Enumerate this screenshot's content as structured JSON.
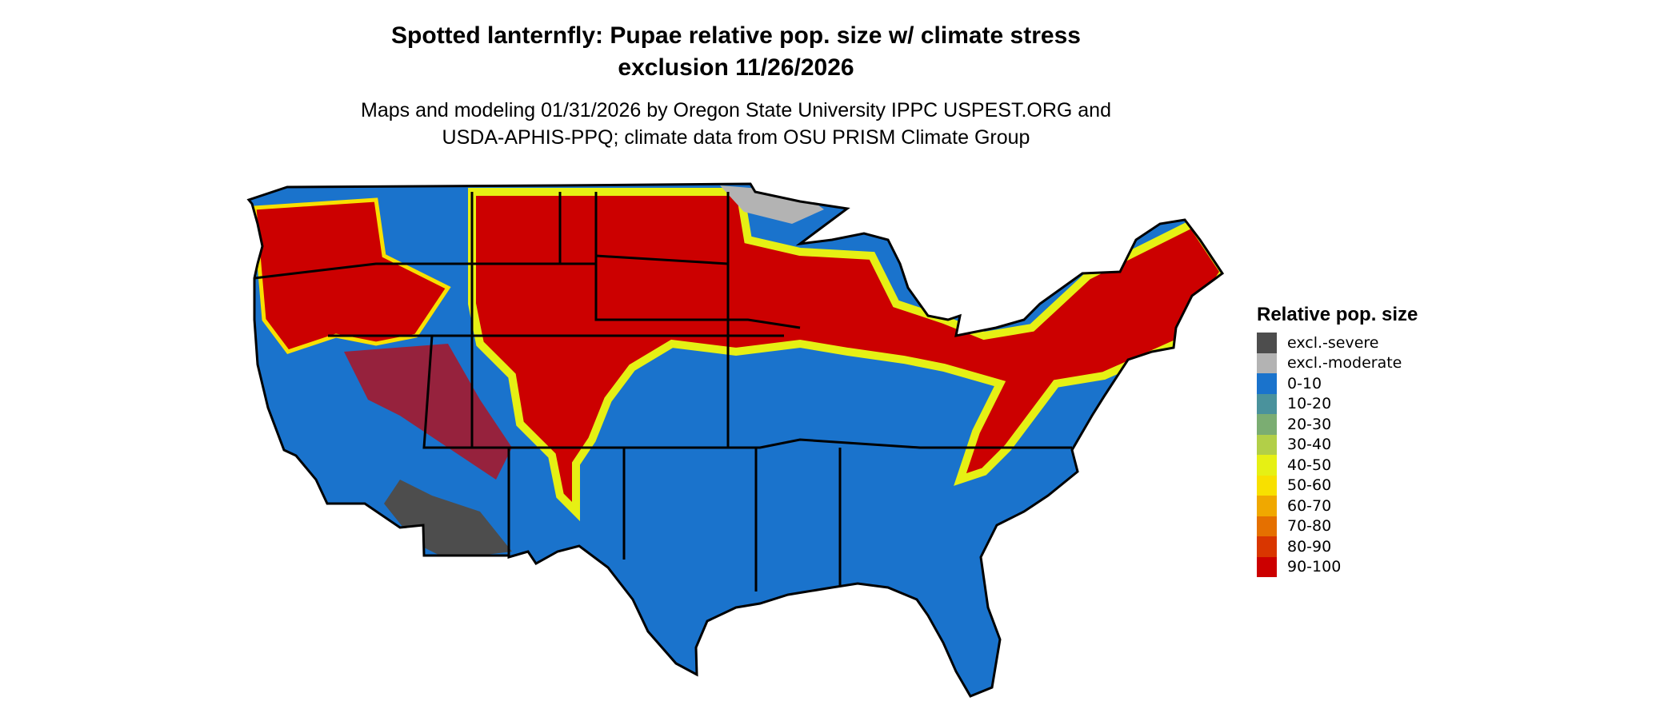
{
  "title_line1": "Spotted lanternfly: Pupae relative pop. size w/ climate stress",
  "title_line2": "exclusion 11/26/2026",
  "subtitle_line1": "Maps and modeling 01/31/2026 by Oregon State University IPPC USPEST.ORG and",
  "subtitle_line2": "USDA-APHIS-PPQ; climate data from OSU PRISM Climate Group",
  "legend": {
    "title": "Relative pop. size",
    "items": [
      {
        "label": "excl.-severe",
        "color": "#4d4d4d"
      },
      {
        "label": "excl.-moderate",
        "color": "#b3b3b3"
      },
      {
        "label": "0-10",
        "color": "#1a73cc"
      },
      {
        "label": "10-20",
        "color": "#4a929c"
      },
      {
        "label": "20-30",
        "color": "#7bad72"
      },
      {
        "label": "30-40",
        "color": "#b2cf48"
      },
      {
        "label": "40-50",
        "color": "#e6f014"
      },
      {
        "label": "50-60",
        "color": "#f8e000"
      },
      {
        "label": "60-70",
        "color": "#f0a800"
      },
      {
        "label": "70-80",
        "color": "#e57000"
      },
      {
        "label": "80-90",
        "color": "#d93600"
      },
      {
        "label": "90-100",
        "color": "#cc0000"
      }
    ]
  }
}
